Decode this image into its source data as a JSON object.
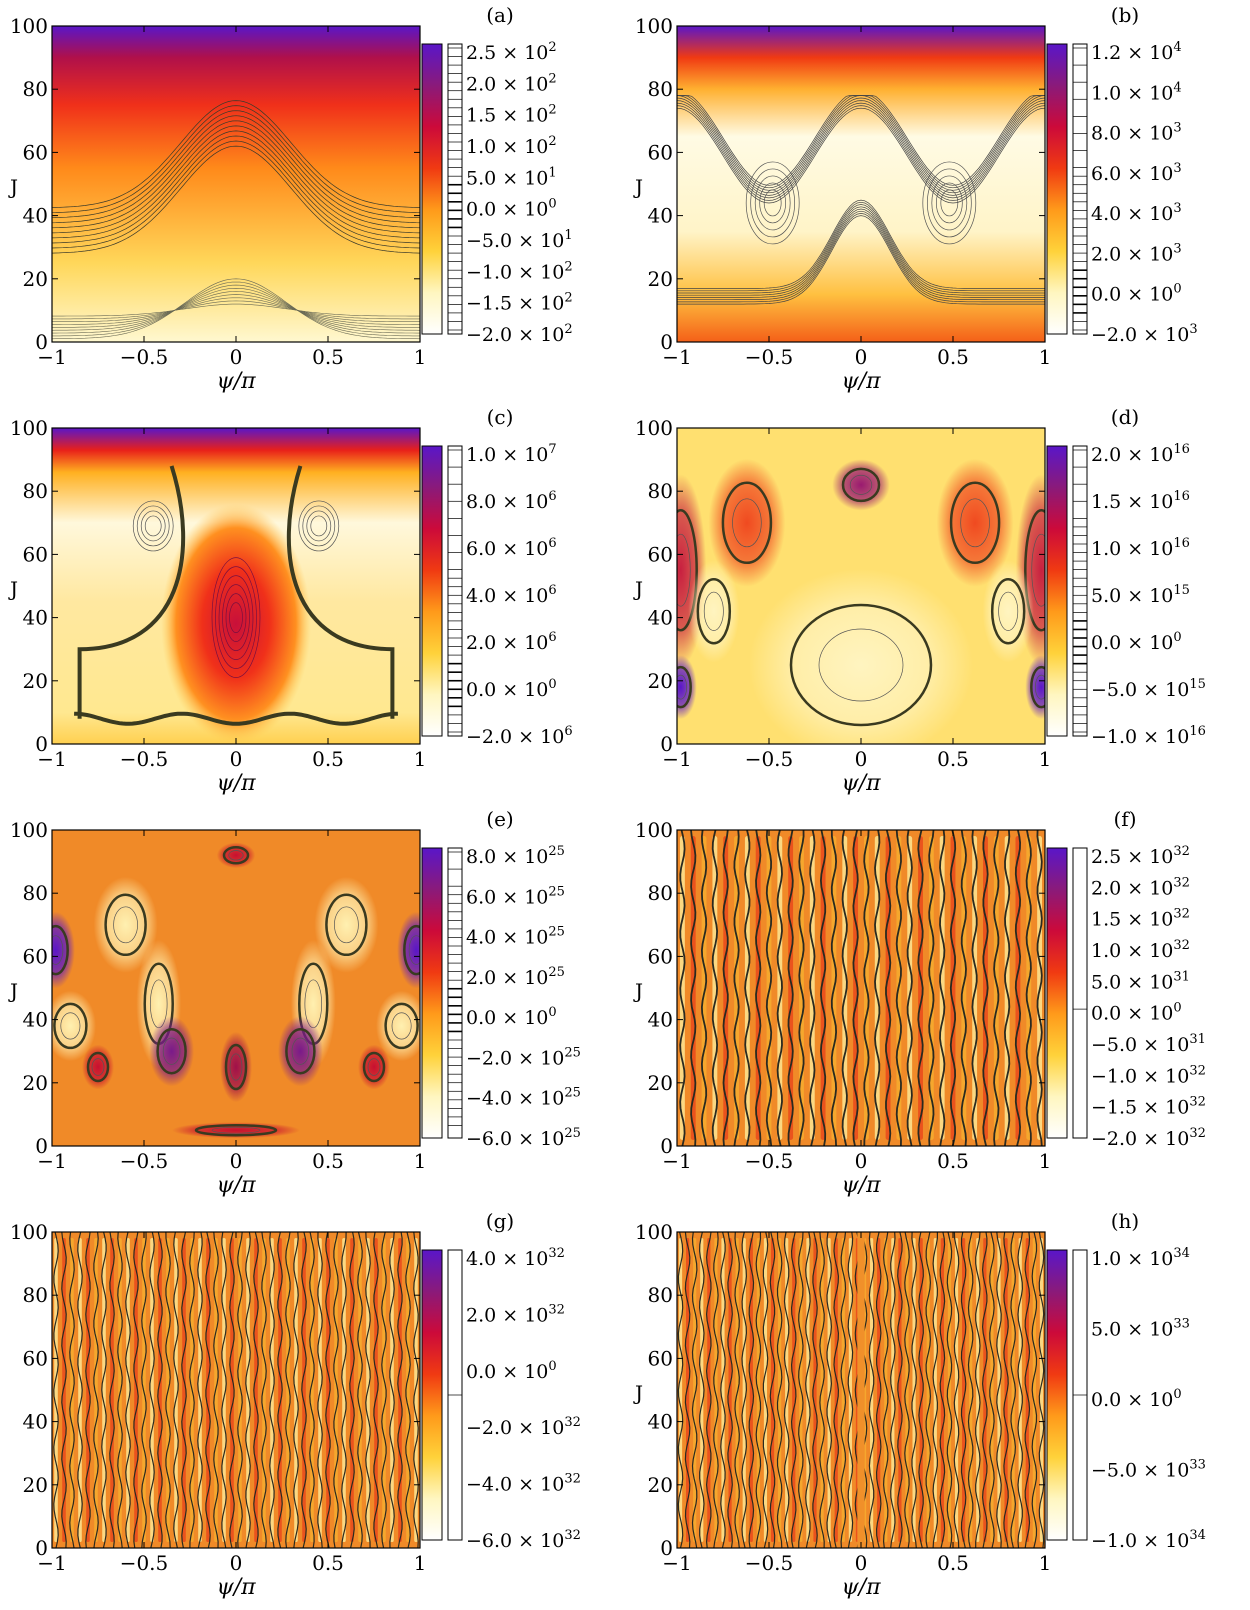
{
  "page": {
    "title": ""
  },
  "colormap": [
    "#ffffff",
    "#fff6c0",
    "#ffd23a",
    "#ff9a1a",
    "#f03a12",
    "#cc0a3a",
    "#8a1a7a",
    "#5a16c8"
  ],
  "chart_data": [
    {
      "type": "heatmap",
      "panel_label": "(a)",
      "title": "",
      "xlabel": "ψ/π",
      "ylabel": "J",
      "xlim": [
        -1,
        1
      ],
      "ylim": [
        0,
        100
      ],
      "xticks": [
        "−1",
        "−0.5",
        "0",
        "0.5",
        "1"
      ],
      "yticks": [
        "0",
        "20",
        "40",
        "60",
        "80",
        "100"
      ],
      "colorbar_ticks": [
        {
          "base": "2.5",
          "exp": "2"
        },
        {
          "base": "2.0",
          "exp": "2"
        },
        {
          "base": "1.5",
          "exp": "2"
        },
        {
          "base": "1.0",
          "exp": "2"
        },
        {
          "base": "5.0",
          "exp": "1"
        },
        {
          "base": "0.0",
          "exp": "0"
        },
        {
          "base": "−5.0",
          "exp": "1"
        },
        {
          "base": "−1.0",
          "exp": "2"
        },
        {
          "base": "−1.5",
          "exp": "2"
        },
        {
          "base": "−2.0",
          "exp": "2"
        }
      ],
      "colorbar_range": [
        -200,
        250
      ],
      "grid": false
    },
    {
      "type": "heatmap",
      "panel_label": "(b)",
      "title": "",
      "xlabel": "ψ/π",
      "ylabel": "J",
      "xlim": [
        -1,
        1
      ],
      "ylim": [
        0,
        100
      ],
      "xticks": [
        "−1",
        "−0.5",
        "0",
        "0.5",
        "1"
      ],
      "yticks": [
        "0",
        "20",
        "40",
        "60",
        "80",
        "100"
      ],
      "colorbar_ticks": [
        {
          "base": "1.2",
          "exp": "4"
        },
        {
          "base": "1.0",
          "exp": "4"
        },
        {
          "base": "8.0",
          "exp": "3"
        },
        {
          "base": "6.0",
          "exp": "3"
        },
        {
          "base": "4.0",
          "exp": "3"
        },
        {
          "base": "2.0",
          "exp": "3"
        },
        {
          "base": "0.0",
          "exp": "0"
        },
        {
          "base": "−2.0",
          "exp": "3"
        }
      ],
      "colorbar_range": [
        -2000,
        12000
      ],
      "grid": false
    },
    {
      "type": "heatmap",
      "panel_label": "(c)",
      "title": "",
      "xlabel": "ψ/π",
      "ylabel": "J",
      "xlim": [
        -1,
        1
      ],
      "ylim": [
        0,
        100
      ],
      "xticks": [
        "−1",
        "−0.5",
        "0",
        "0.5",
        "1"
      ],
      "yticks": [
        "0",
        "20",
        "40",
        "60",
        "80",
        "100"
      ],
      "colorbar_ticks": [
        {
          "base": "1.0",
          "exp": "7"
        },
        {
          "base": "8.0",
          "exp": "6"
        },
        {
          "base": "6.0",
          "exp": "6"
        },
        {
          "base": "4.0",
          "exp": "6"
        },
        {
          "base": "2.0",
          "exp": "6"
        },
        {
          "base": "0.0",
          "exp": "0"
        },
        {
          "base": "−2.0",
          "exp": "6"
        }
      ],
      "colorbar_range": [
        -2000000,
        10000000
      ],
      "grid": false
    },
    {
      "type": "heatmap",
      "panel_label": "(d)",
      "title": "",
      "xlabel": "ψ/π",
      "ylabel": "J",
      "xlim": [
        -1,
        1
      ],
      "ylim": [
        0,
        100
      ],
      "xticks": [
        "−1",
        "−0.5",
        "0",
        "0.5",
        "1"
      ],
      "yticks": [
        "0",
        "20",
        "40",
        "60",
        "80",
        "100"
      ],
      "colorbar_ticks": [
        {
          "base": "2.0",
          "exp": "16"
        },
        {
          "base": "1.5",
          "exp": "16"
        },
        {
          "base": "1.0",
          "exp": "16"
        },
        {
          "base": "5.0",
          "exp": "15"
        },
        {
          "base": "0.0",
          "exp": "0"
        },
        {
          "base": "−5.0",
          "exp": "15"
        },
        {
          "base": "−1.0",
          "exp": "16"
        }
      ],
      "colorbar_range": [
        -1e+16,
        2e+16
      ],
      "grid": false
    },
    {
      "type": "heatmap",
      "panel_label": "(e)",
      "title": "",
      "xlabel": "ψ/π",
      "ylabel": "J",
      "xlim": [
        -1,
        1
      ],
      "ylim": [
        0,
        100
      ],
      "xticks": [
        "−1",
        "−0.5",
        "0",
        "0.5",
        "1"
      ],
      "yticks": [
        "0",
        "20",
        "40",
        "60",
        "80",
        "100"
      ],
      "colorbar_ticks": [
        {
          "base": "8.0",
          "exp": "25"
        },
        {
          "base": "6.0",
          "exp": "25"
        },
        {
          "base": "4.0",
          "exp": "25"
        },
        {
          "base": "2.0",
          "exp": "25"
        },
        {
          "base": "0.0",
          "exp": "0"
        },
        {
          "base": "−2.0",
          "exp": "25"
        },
        {
          "base": "−4.0",
          "exp": "25"
        },
        {
          "base": "−6.0",
          "exp": "25"
        }
      ],
      "colorbar_range": [
        -6e+25,
        8e+25
      ],
      "grid": false
    },
    {
      "type": "heatmap",
      "panel_label": "(f)",
      "title": "",
      "xlabel": "ψ/π",
      "ylabel": "J",
      "xlim": [
        -1,
        1
      ],
      "ylim": [
        0,
        100
      ],
      "xticks": [
        "−1",
        "−0.5",
        "0",
        "0.5",
        "1"
      ],
      "yticks": [
        "0",
        "20",
        "40",
        "60",
        "80",
        "100"
      ],
      "colorbar_ticks": [
        {
          "base": "2.5",
          "exp": "32"
        },
        {
          "base": "2.0",
          "exp": "32"
        },
        {
          "base": "1.5",
          "exp": "32"
        },
        {
          "base": "1.0",
          "exp": "32"
        },
        {
          "base": "5.0",
          "exp": "31"
        },
        {
          "base": "0.0",
          "exp": "0"
        },
        {
          "base": "−5.0",
          "exp": "31"
        },
        {
          "base": "−1.0",
          "exp": "32"
        },
        {
          "base": "−1.5",
          "exp": "32"
        },
        {
          "base": "−2.0",
          "exp": "32"
        }
      ],
      "colorbar_range": [
        -2e+32,
        2.5e+32
      ],
      "grid": false
    },
    {
      "type": "heatmap",
      "panel_label": "(g)",
      "title": "",
      "xlabel": "ψ/π",
      "ylabel": "",
      "xlim": [
        -1,
        1
      ],
      "ylim": [
        0,
        100
      ],
      "xticks": [
        "−1",
        "−0.5",
        "0",
        "0.5",
        "1"
      ],
      "yticks": [
        "0",
        "20",
        "40",
        "60",
        "80",
        "100"
      ],
      "colorbar_ticks": [
        {
          "base": "4.0",
          "exp": "32"
        },
        {
          "base": "2.0",
          "exp": "32"
        },
        {
          "base": "0.0",
          "exp": "0"
        },
        {
          "base": "−2.0",
          "exp": "32"
        },
        {
          "base": "−4.0",
          "exp": "32"
        },
        {
          "base": "−6.0",
          "exp": "32"
        }
      ],
      "colorbar_range": [
        -6e+32,
        6e+32
      ],
      "grid": false
    },
    {
      "type": "heatmap",
      "panel_label": "(h)",
      "title": "",
      "xlabel": "ψ/π",
      "ylabel": "J",
      "xlim": [
        -1,
        1
      ],
      "ylim": [
        0,
        100
      ],
      "xticks": [
        "−1",
        "−0.5",
        "0",
        "0.5",
        "1"
      ],
      "yticks": [
        "0",
        "20",
        "40",
        "60",
        "80",
        "100"
      ],
      "colorbar_ticks": [
        {
          "base": "1.0",
          "exp": "34"
        },
        {
          "base": "5.0",
          "exp": "33"
        },
        {
          "base": "0.0",
          "exp": "0"
        },
        {
          "base": "−5.0",
          "exp": "33"
        },
        {
          "base": "−1.0",
          "exp": "34"
        }
      ],
      "colorbar_range": [
        -1.3e+34,
        1.3e+34
      ],
      "grid": false
    }
  ]
}
